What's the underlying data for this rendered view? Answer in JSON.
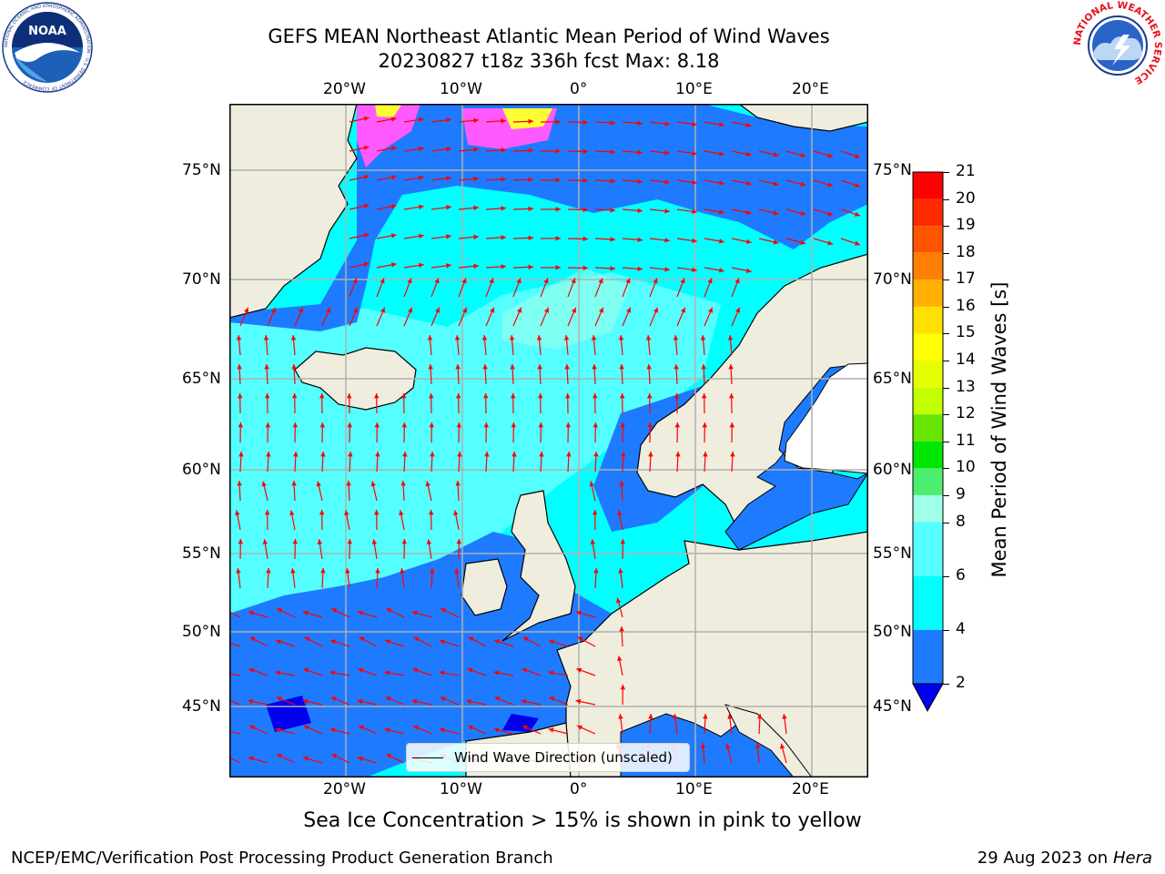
{
  "header": {
    "title_line1": "GEFS MEAN Northeast Atlantic Mean Period of Wind Waves",
    "title_line2": "20230827 t18z 336h fcst   Max: 8.18"
  },
  "map": {
    "lon_ticks": [
      "20°W",
      "10°W",
      "0°",
      "10°E",
      "20°E"
    ],
    "lat_ticks": [
      "75°N",
      "70°N",
      "65°N",
      "60°N",
      "55°N",
      "50°N",
      "45°N"
    ],
    "legend_label": "Wind Wave Direction (unscaled)",
    "colors": {
      "land": "#efedde",
      "ocean_low": "#1e7bff",
      "ocean_mid": "#00ffff",
      "ocean_high": "#4dfff0",
      "arrow": "#ff0000",
      "ice_pink": "#ff5aff",
      "ice_yellow": "#ffff33",
      "grid": "#b0b0b0"
    }
  },
  "colorbar": {
    "label": "Mean Period of Wind Waves [s]",
    "ticks": [
      "21",
      "20",
      "19",
      "18",
      "17",
      "16",
      "15",
      "14",
      "13",
      "12",
      "11",
      "10",
      "9",
      "8",
      "6",
      "4",
      "2"
    ],
    "levels": [
      {
        "from": 20,
        "to": 21,
        "color": "#ff0000"
      },
      {
        "from": 19,
        "to": 20,
        "color": "#ff2a00"
      },
      {
        "from": 18,
        "to": 19,
        "color": "#ff5500"
      },
      {
        "from": 17,
        "to": 18,
        "color": "#ff8000"
      },
      {
        "from": 16,
        "to": 17,
        "color": "#ffb000"
      },
      {
        "from": 15,
        "to": 16,
        "color": "#ffe000"
      },
      {
        "from": 14,
        "to": 15,
        "color": "#ffff00"
      },
      {
        "from": 13,
        "to": 14,
        "color": "#e6ff00"
      },
      {
        "from": 12,
        "to": 13,
        "color": "#c2ff00"
      },
      {
        "from": 11,
        "to": 12,
        "color": "#66e600"
      },
      {
        "from": 10,
        "to": 11,
        "color": "#00e600"
      },
      {
        "from": 9,
        "to": 10,
        "color": "#4dee6e"
      },
      {
        "from": 8,
        "to": 9,
        "color": "#a0ffe8"
      },
      {
        "from": 6,
        "to": 8,
        "color": "#55ffff"
      },
      {
        "from": 4,
        "to": 6,
        "color": "#00ffff"
      },
      {
        "from": 2,
        "to": 4,
        "color": "#1e7bff"
      }
    ],
    "under_color": "#0000ee"
  },
  "footer": {
    "note": "Sea Ice Concentration > 15% is shown in pink to yellow",
    "left": "NCEP/EMC/Verification Post Processing Product Generation Branch",
    "right_date": "29 Aug 2023 on",
    "right_machine": "Hera"
  },
  "logos": {
    "noaa_text": "NOAA",
    "noaa_ring": "NATIONAL OCEANIC AND ATMOSPHERIC ADMINISTRATION · U.S. DEPARTMENT OF COMMERCE",
    "nws_ring": "NATIONAL WEATHER SERVICE"
  }
}
